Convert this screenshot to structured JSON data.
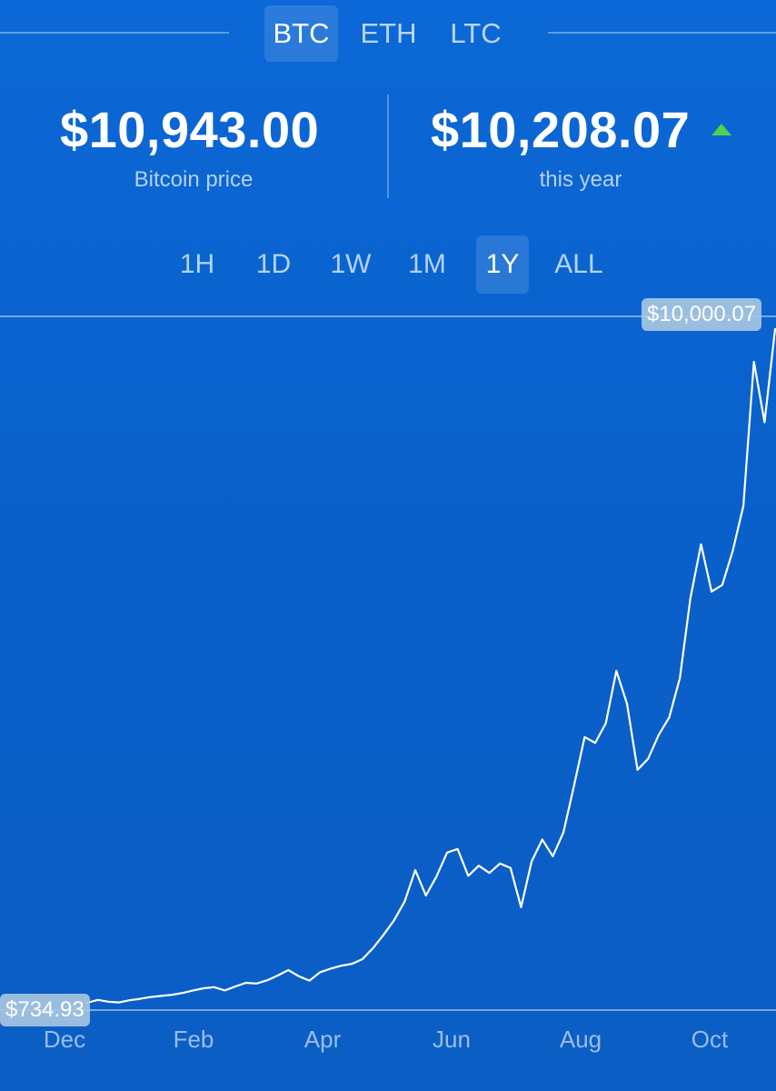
{
  "asset_tabs": [
    {
      "label": "BTC",
      "active": true
    },
    {
      "label": "ETH",
      "active": false
    },
    {
      "label": "LTC",
      "active": false
    }
  ],
  "stats": {
    "price_value": "$10,943.00",
    "price_label": "Bitcoin price",
    "change_value": "$10,208.07",
    "change_label": "this year",
    "change_direction_icon": "triangle-up-icon",
    "change_color": "#4fd34f"
  },
  "range_tabs": [
    {
      "label": "1H",
      "active": false
    },
    {
      "label": "1D",
      "active": false
    },
    {
      "label": "1W",
      "active": false
    },
    {
      "label": "1M",
      "active": false
    },
    {
      "label": "1Y",
      "active": true
    },
    {
      "label": "ALL",
      "active": false
    }
  ],
  "chart_data": {
    "type": "line",
    "high_label": "$10,000.07",
    "low_label": "$734.93",
    "x_tick_labels": [
      "Dec",
      "Feb",
      "Apr",
      "Jun",
      "Aug",
      "Oct"
    ],
    "ylim": [
      734.93,
      10000.07
    ],
    "line_color": "#ffffff",
    "series": [
      {
        "values": [
          734.9,
          775,
          750,
          740,
          770,
          790,
          815,
          830,
          845,
          870,
          905,
          935,
          950,
          905,
          960,
          1010,
          1000,
          1045,
          1110,
          1185,
          1100,
          1040,
          1155,
          1205,
          1245,
          1270,
          1335,
          1485,
          1670,
          1870,
          2130,
          2560,
          2210,
          2470,
          2800,
          2850,
          2480,
          2620,
          2520,
          2650,
          2590,
          2050,
          2680,
          2980,
          2750,
          3080,
          3720,
          4390,
          4310,
          4580,
          5300,
          4850,
          3940,
          4090,
          4420,
          4660,
          5200,
          6300,
          7040,
          6390,
          6480,
          6950,
          7570,
          9550,
          8720,
          10000.07
        ]
      }
    ]
  }
}
